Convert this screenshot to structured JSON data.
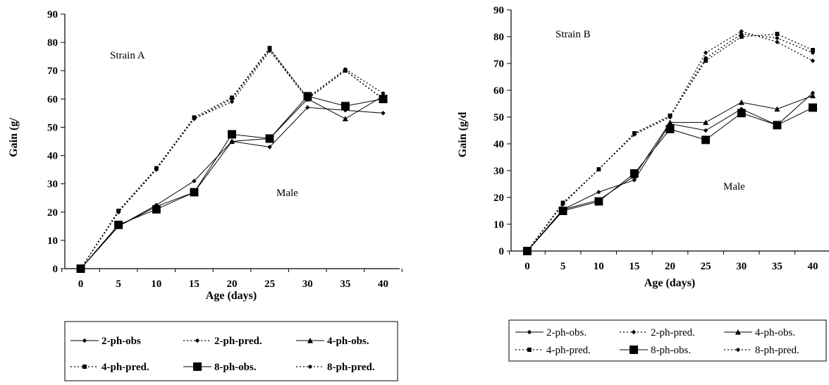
{
  "chart_data": [
    {
      "type": "line",
      "x": [
        0,
        5,
        10,
        15,
        20,
        25,
        30,
        35,
        40
      ],
      "xlabel": "Age (days)",
      "ylabel": "Gain (g/",
      "ylim": [
        0,
        90
      ],
      "yticks": [
        0,
        10,
        20,
        30,
        40,
        50,
        60,
        70,
        80,
        90
      ],
      "annotations": [
        "Strain A",
        "Male"
      ],
      "legend_position": "bottom",
      "series": [
        {
          "name": "2-ph-obs",
          "values": [
            0,
            15,
            22.5,
            31,
            45,
            43,
            57,
            56,
            55
          ]
        },
        {
          "name": "2-ph-pred.",
          "values": [
            0,
            20,
            35.5,
            53,
            59,
            77,
            60,
            70,
            60
          ]
        },
        {
          "name": "4-ph-obs.",
          "values": [
            0,
            15,
            22,
            27,
            45,
            46,
            60,
            53,
            61
          ]
        },
        {
          "name": "4-ph-pred.",
          "values": [
            0,
            20.5,
            35.5,
            53.5,
            60.5,
            78,
            60,
            70,
            60
          ]
        },
        {
          "name": "8-ph-obs.",
          "values": [
            0,
            15.5,
            21,
            27,
            47.5,
            46,
            61,
            57.5,
            60
          ]
        },
        {
          "name": "8-ph-pred.",
          "values": [
            0,
            20,
            35,
            53,
            60,
            77.5,
            60.5,
            70.5,
            62
          ]
        }
      ]
    },
    {
      "type": "line",
      "x": [
        0,
        5,
        10,
        15,
        20,
        25,
        30,
        35,
        40
      ],
      "xlabel": "Age (days)",
      "ylabel": "Gain (g/d",
      "ylim": [
        0,
        90
      ],
      "yticks": [
        0,
        10,
        20,
        30,
        40,
        50,
        60,
        70,
        80,
        90
      ],
      "annotations": [
        "Strain B",
        "Male"
      ],
      "legend_position": "bottom",
      "series": [
        {
          "name": "2-ph-obs.",
          "values": [
            0,
            15.5,
            22,
            26.5,
            47.5,
            45,
            53,
            47,
            59
          ]
        },
        {
          "name": "2-ph-pred.",
          "values": [
            0,
            17.5,
            30.5,
            43.5,
            50,
            74,
            82,
            78,
            71
          ]
        },
        {
          "name": "4-ph-obs.",
          "values": [
            0,
            15.5,
            19,
            28,
            48,
            48,
            55.5,
            53,
            58
          ]
        },
        {
          "name": "4-ph-pred.",
          "values": [
            0,
            18,
            30.5,
            44,
            50.5,
            71,
            80,
            81,
            75
          ]
        },
        {
          "name": "8-ph-obs.",
          "values": [
            0,
            15,
            18.5,
            29,
            45.5,
            41.5,
            51.5,
            47,
            53.5
          ]
        },
        {
          "name": "8-ph-pred.",
          "values": [
            0,
            17.5,
            30.5,
            43.5,
            50,
            72,
            81,
            79.5,
            74
          ]
        }
      ]
    }
  ]
}
